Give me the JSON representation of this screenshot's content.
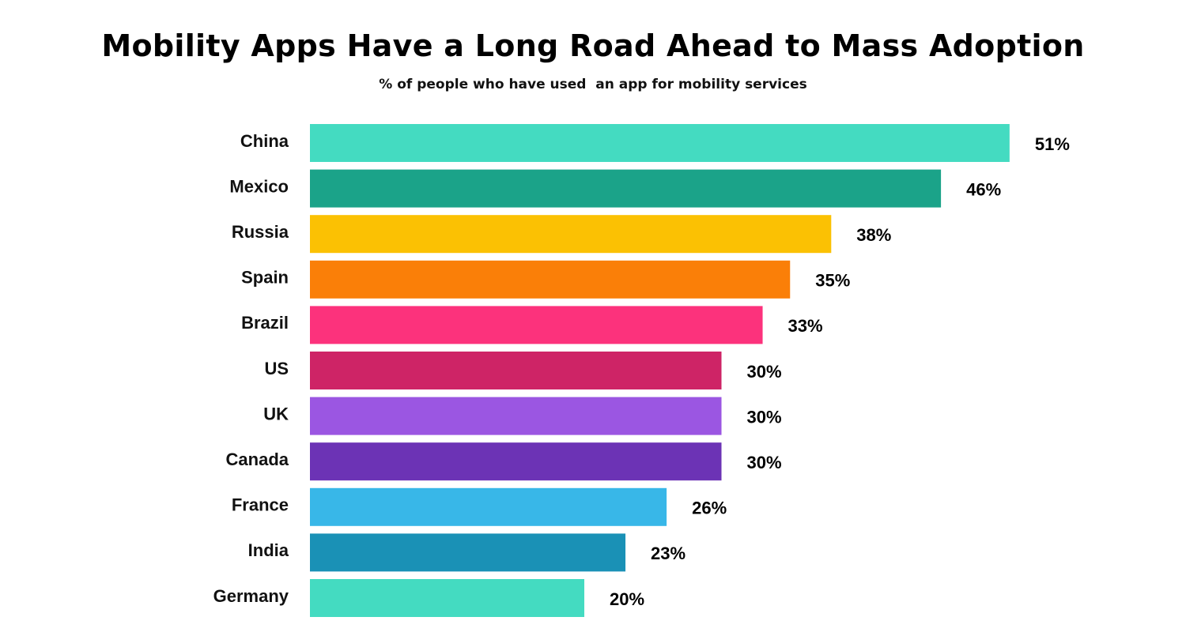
{
  "chart_data": {
    "type": "bar",
    "orientation": "horizontal",
    "title": "Mobility Apps Have a Long Road Ahead to Mass Adoption",
    "subtitle": "% of people who have used  an app for mobility services",
    "categories": [
      "China",
      "Mexico",
      "Russia",
      "Spain",
      "Brazil",
      "US",
      "UK",
      "Canada",
      "France",
      "India",
      "Germany"
    ],
    "values": [
      51,
      46,
      38,
      35,
      33,
      30,
      30,
      30,
      26,
      23,
      20
    ],
    "value_labels": [
      "51%",
      "46%",
      "38%",
      "35%",
      "33%",
      "30%",
      "30%",
      "30%",
      "26%",
      "23%",
      "20%"
    ],
    "colors": [
      "#44dbc1",
      "#1ba389",
      "#fbc103",
      "#fa7f08",
      "#fc327c",
      "#ce2466",
      "#9b56e2",
      "#6c33b5",
      "#38b7e8",
      "#1a91b6",
      "#44dbc1"
    ],
    "unit": "%",
    "grid": false,
    "legend": "none"
  }
}
